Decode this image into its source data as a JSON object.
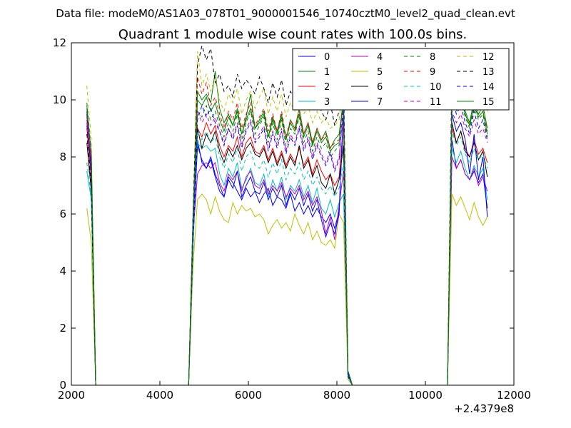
{
  "figure": {
    "suptitle": "Data file: modeM0/AS1A03_078T01_9000001546_10740cztM0_level2_quad_clean.evt"
  },
  "chart_data": {
    "type": "line",
    "title": "Quadrant 1 module wise count rates with 100.0s bins.",
    "xlabel": "",
    "ylabel": "",
    "x_offset_label": "+2.4379e8",
    "xlim": [
      2000,
      12000
    ],
    "ylim": [
      0,
      12
    ],
    "x_ticks": [
      2000,
      4000,
      6000,
      8000,
      10000,
      12000
    ],
    "y_ticks": [
      0,
      2,
      4,
      6,
      8,
      10,
      12
    ],
    "grid": false,
    "legend_position": "top-right",
    "legend_columns": 4,
    "x": [
      2350,
      2450,
      2550,
      4650,
      4750,
      4850,
      4950,
      5050,
      5150,
      5250,
      5350,
      5450,
      5550,
      5650,
      5750,
      5850,
      5950,
      6050,
      6150,
      6250,
      6350,
      6450,
      6550,
      6650,
      6750,
      6850,
      6950,
      7050,
      7150,
      7250,
      7350,
      7450,
      7550,
      7650,
      7750,
      7850,
      7950,
      8050,
      8150,
      8250,
      8350,
      8450,
      10500,
      10600,
      10700,
      10800,
      10900,
      11000,
      11100,
      11200,
      11300,
      11400
    ],
    "series": [
      {
        "name": "0",
        "color": "#0000ff",
        "dash": "",
        "values": [
          9.5,
          7.5,
          0,
          0,
          5.2,
          8.6,
          7.8,
          7.6,
          7.9,
          7.3,
          6.8,
          6.6,
          7.3,
          7.1,
          6.8,
          6.5,
          6.9,
          6.6,
          6.8,
          6.4,
          6.7,
          6.9,
          6.3,
          6.6,
          6.5,
          6.2,
          6.7,
          6.1,
          6.4,
          6.0,
          6.3,
          5.9,
          6.2,
          5.9,
          5.7,
          6.0,
          5.5,
          6.1,
          9.5,
          0.4,
          0,
          0,
          0,
          8.6,
          7.6,
          7.9,
          7.4,
          7.2,
          7.5,
          7.1,
          7.4,
          6.2
        ]
      },
      {
        "name": "1",
        "color": "#008000",
        "dash": "",
        "values": [
          9.8,
          8.0,
          0,
          0,
          6.0,
          10.3,
          10.0,
          10.2,
          9.9,
          11.0,
          9.7,
          9.2,
          9.5,
          9.1,
          9.6,
          8.8,
          9.4,
          10.2,
          9.0,
          9.3,
          9.6,
          8.7,
          9.4,
          8.9,
          9.5,
          8.6,
          9.3,
          9.0,
          9.7,
          8.8,
          9.2,
          8.5,
          9.0,
          8.6,
          8.9,
          8.3,
          8.6,
          8.8,
          10.0,
          0.5,
          0,
          0,
          0,
          10.0,
          9.8,
          10.2,
          9.6,
          9.2,
          10.0,
          9.5,
          9.8,
          9.0
        ]
      },
      {
        "name": "2",
        "color": "#ff0000",
        "dash": "",
        "values": [
          9.0,
          7.2,
          0,
          0,
          5.5,
          9.0,
          8.7,
          9.2,
          8.8,
          9.1,
          8.4,
          8.0,
          8.4,
          8.2,
          8.7,
          8.0,
          8.5,
          8.7,
          8.2,
          8.1,
          8.4,
          7.9,
          8.3,
          7.8,
          8.2,
          7.7,
          8.1,
          7.8,
          8.3,
          7.7,
          8.0,
          7.4,
          7.9,
          7.5,
          7.2,
          7.4,
          7.0,
          7.3,
          9.2,
          0.4,
          0,
          0,
          0,
          9.0,
          8.5,
          8.9,
          8.3,
          8.0,
          8.6,
          8.1,
          8.3,
          7.8
        ]
      },
      {
        "name": "3",
        "color": "#00bfbf",
        "dash": "",
        "values": [
          7.5,
          6.5,
          0,
          0,
          4.9,
          8.5,
          8.3,
          8.4,
          8.2,
          8.3,
          7.4,
          7.0,
          7.6,
          7.3,
          7.8,
          6.9,
          7.2,
          7.6,
          7.1,
          7.0,
          7.4,
          6.6,
          7.2,
          6.8,
          7.3,
          6.5,
          7.0,
          6.8,
          7.2,
          6.6,
          7.0,
          6.4,
          6.9,
          6.2,
          6.0,
          6.5,
          5.9,
          6.4,
          6.7,
          0.3,
          0,
          0,
          0,
          8.3,
          7.8,
          8.2,
          7.6,
          7.2,
          7.7,
          7.3,
          7.6,
          6.5
        ]
      },
      {
        "name": "4",
        "color": "#bf00bf",
        "dash": "",
        "values": [
          9.2,
          7.8,
          0,
          0,
          5.3,
          7.4,
          7.7,
          7.8,
          7.6,
          7.8,
          7.1,
          6.8,
          7.4,
          7.2,
          7.5,
          6.8,
          7.3,
          7.5,
          7.0,
          6.9,
          7.2,
          6.7,
          7.0,
          6.8,
          7.1,
          6.6,
          6.9,
          6.7,
          7.0,
          6.5,
          6.8,
          6.3,
          6.6,
          6.1,
          5.3,
          5.9,
          5.1,
          6.3,
          7.5,
          0.3,
          0,
          0,
          0,
          8.0,
          7.6,
          7.9,
          7.4,
          7.2,
          7.6,
          7.0,
          7.3,
          6.8
        ]
      },
      {
        "name": "5",
        "color": "#bfbf00",
        "dash": "",
        "values": [
          6.2,
          5.0,
          0,
          0,
          4.2,
          6.5,
          6.7,
          6.5,
          6.0,
          6.6,
          6.1,
          5.8,
          5.7,
          6.4,
          6.0,
          6.3,
          6.1,
          6.2,
          5.9,
          6.0,
          5.8,
          5.3,
          5.6,
          5.8,
          5.5,
          5.7,
          5.4,
          6.0,
          5.6,
          5.3,
          5.7,
          5.1,
          5.4,
          5.0,
          4.9,
          5.1,
          4.8,
          6.0,
          5.7,
          0.2,
          0,
          0,
          0,
          6.7,
          6.3,
          6.6,
          6.2,
          5.8,
          6.4,
          5.9,
          5.6,
          5.9
        ]
      },
      {
        "name": "6",
        "color": "#000000",
        "dash": "",
        "values": [
          8.5,
          6.8,
          0,
          0,
          5.0,
          9.0,
          8.3,
          8.8,
          8.5,
          8.9,
          8.2,
          7.8,
          8.3,
          8.0,
          8.4,
          7.9,
          8.3,
          8.5,
          8.1,
          8.0,
          8.3,
          7.8,
          8.2,
          7.7,
          8.1,
          7.6,
          8.0,
          7.7,
          8.4,
          7.6,
          7.9,
          7.3,
          7.7,
          7.1,
          6.9,
          7.4,
          6.7,
          7.2,
          8.4,
          0.4,
          0,
          0,
          0,
          9.2,
          8.5,
          8.9,
          8.2,
          8.0,
          8.5,
          7.9,
          8.2,
          7.3
        ]
      },
      {
        "name": "7",
        "color": "#0000ff",
        "dash": "",
        "values": [
          9.6,
          7.4,
          0,
          0,
          5.1,
          8.4,
          7.9,
          7.6,
          8.0,
          7.4,
          7.0,
          6.6,
          7.2,
          6.9,
          7.5,
          6.6,
          7.0,
          7.3,
          6.8,
          6.7,
          7.1,
          6.5,
          6.9,
          6.6,
          7.0,
          6.3,
          6.8,
          6.5,
          6.9,
          6.3,
          6.7,
          6.1,
          6.5,
          5.8,
          5.2,
          5.7,
          5.3,
          6.0,
          9.7,
          0.3,
          0,
          0,
          0,
          9.5,
          8.9,
          9.2,
          8.6,
          7.4,
          8.8,
          7.2,
          8.0,
          5.9
        ]
      },
      {
        "name": "8",
        "color": "#008000",
        "dash": "5,4",
        "values": [
          9.9,
          8.2,
          0,
          0,
          5.8,
          9.6,
          9.4,
          9.8,
          9.3,
          9.6,
          9.1,
          8.7,
          9.2,
          8.9,
          9.5,
          8.6,
          9.2,
          9.6,
          8.8,
          9.1,
          9.4,
          8.5,
          9.2,
          8.6,
          9.3,
          8.4,
          9.0,
          8.8,
          9.4,
          8.5,
          8.9,
          8.2,
          8.7,
          8.3,
          8.5,
          8.0,
          8.2,
          8.4,
          10.2,
          0.5,
          0,
          0,
          0,
          9.9,
          9.6,
          10.0,
          9.4,
          9.0,
          9.7,
          9.3,
          9.5,
          8.7
        ]
      },
      {
        "name": "9",
        "color": "#ff0000",
        "dash": "5,4",
        "values": [
          9.3,
          7.7,
          0,
          0,
          5.7,
          10.8,
          10.2,
          10.6,
          9.8,
          10.1,
          9.5,
          9.0,
          9.6,
          9.3,
          9.9,
          9.0,
          9.5,
          9.9,
          9.1,
          9.4,
          9.7,
          8.9,
          9.5,
          8.9,
          9.6,
          8.7,
          9.3,
          9.0,
          9.6,
          8.8,
          9.2,
          8.5,
          9.0,
          8.6,
          8.8,
          8.3,
          8.5,
          8.6,
          10.3,
          0.5,
          0,
          0,
          0,
          10.2,
          9.7,
          10.1,
          9.5,
          9.1,
          9.8,
          9.4,
          9.6,
          8.9
        ]
      },
      {
        "name": "10",
        "color": "#00bfbf",
        "dash": "5,4",
        "values": [
          7.8,
          6.6,
          0,
          0,
          5.0,
          8.9,
          8.6,
          8.9,
          8.5,
          8.7,
          8.0,
          7.6,
          8.1,
          7.8,
          8.3,
          7.5,
          8.0,
          8.2,
          7.7,
          7.6,
          7.9,
          7.3,
          7.8,
          7.4,
          7.9,
          7.2,
          7.6,
          7.4,
          7.8,
          7.2,
          7.5,
          7.0,
          7.3,
          6.9,
          6.7,
          7.0,
          6.6,
          6.9,
          7.8,
          0.3,
          0,
          0,
          0,
          8.9,
          8.4,
          8.7,
          8.1,
          7.8,
          8.3,
          7.9,
          8.1,
          7.6
        ]
      },
      {
        "name": "11",
        "color": "#bf00bf",
        "dash": "5,4",
        "values": [
          9.4,
          7.9,
          0,
          0,
          5.6,
          9.6,
          9.2,
          9.5,
          9.1,
          9.4,
          8.9,
          8.5,
          9.0,
          8.7,
          9.2,
          8.4,
          9.0,
          9.3,
          8.6,
          8.8,
          9.1,
          8.3,
          8.9,
          8.4,
          9.0,
          8.2,
          8.8,
          8.5,
          9.1,
          8.3,
          8.7,
          8.0,
          8.5,
          8.1,
          7.8,
          8.2,
          7.6,
          8.0,
          9.6,
          0.4,
          0,
          0,
          0,
          9.6,
          9.2,
          9.5,
          9.0,
          8.7,
          9.3,
          8.8,
          9.0,
          8.5
        ]
      },
      {
        "name": "12",
        "color": "#bfbf00",
        "dash": "5,4",
        "values": [
          10.5,
          8.6,
          0,
          0,
          5.9,
          11.7,
          10.5,
          10.9,
          10.3,
          10.8,
          10.0,
          9.6,
          10.2,
          9.9,
          10.4,
          9.5,
          10.0,
          10.3,
          9.7,
          10.1,
          10.4,
          9.5,
          10.1,
          9.6,
          10.2,
          9.4,
          9.9,
          9.6,
          10.2,
          9.5,
          9.8,
          9.2,
          9.6,
          9.2,
          9.4,
          9.0,
          9.1,
          9.3,
          10.8,
          0.5,
          0,
          0,
          0,
          10.9,
          10.3,
          10.7,
          10.1,
          9.7,
          10.4,
          9.9,
          10.2,
          9.6
        ]
      },
      {
        "name": "13",
        "color": "#000000",
        "dash": "5,4",
        "values": [
          8.8,
          7.0,
          0,
          0,
          6.1,
          11.2,
          11.9,
          11.4,
          11.8,
          10.6,
          10.9,
          10.3,
          10.5,
          10.1,
          10.9,
          10.4,
          10.7,
          10.5,
          10.2,
          10.8,
          10.4,
          9.9,
          10.6,
          10.1,
          10.7,
          9.8,
          10.3,
          10.0,
          10.8,
          9.9,
          10.2,
          9.7,
          10.0,
          9.6,
          9.3,
          9.9,
          9.1,
          9.6,
          11.0,
          0.5,
          0,
          0,
          0,
          11.2,
          10.7,
          11.1,
          10.5,
          10.1,
          10.8,
          10.3,
          10.6,
          10.0
        ]
      },
      {
        "name": "14",
        "color": "#0000ff",
        "dash": "5,4",
        "values": [
          9.1,
          7.6,
          0,
          0,
          5.4,
          9.3,
          9.8,
          9.4,
          9.7,
          9.2,
          8.9,
          8.4,
          9.0,
          8.6,
          9.1,
          8.3,
          8.9,
          9.2,
          8.5,
          8.7,
          9.0,
          8.2,
          8.8,
          8.3,
          8.9,
          8.1,
          8.7,
          8.4,
          9.0,
          8.2,
          8.6,
          7.9,
          8.4,
          8.0,
          7.7,
          8.1,
          7.5,
          7.9,
          9.9,
          0.4,
          0,
          0,
          0,
          10.1,
          9.5,
          9.8,
          9.2,
          8.8,
          9.6,
          9.0,
          9.3,
          8.6
        ]
      },
      {
        "name": "15",
        "color": "#008000",
        "dash": "",
        "values": [
          9.7,
          8.1,
          0,
          0,
          5.9,
          10.0,
          9.8,
          10.1,
          9.6,
          9.9,
          9.3,
          8.9,
          9.4,
          9.1,
          9.7,
          8.8,
          9.3,
          9.7,
          9.0,
          9.2,
          9.5,
          8.7,
          9.3,
          8.8,
          9.4,
          8.6,
          9.2,
          8.9,
          9.5,
          8.7,
          9.1,
          8.4,
          8.9,
          8.5,
          8.7,
          8.2,
          8.4,
          8.5,
          10.1,
          0.5,
          0,
          0,
          0,
          10.3,
          9.7,
          10.1,
          9.5,
          9.1,
          9.8,
          9.4,
          9.6,
          8.8
        ]
      }
    ]
  }
}
